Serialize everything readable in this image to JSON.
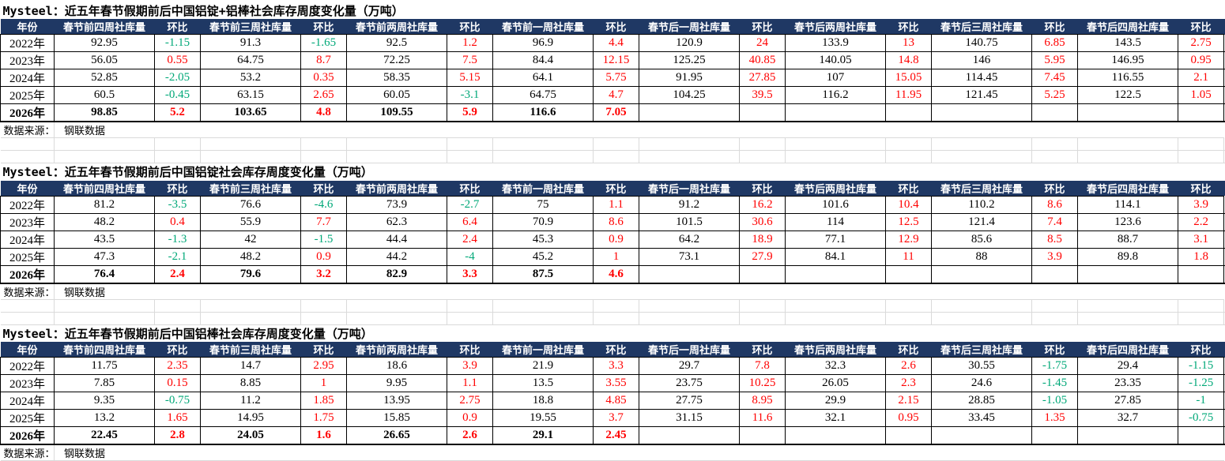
{
  "colors": {
    "header_bg": "#1F3864",
    "header_text": "#FFFFFF",
    "positive": "#FF0000",
    "negative": "#00A878",
    "grid_black": "#000000",
    "grid_light": "#DADADA"
  },
  "sheet": {
    "source_label": "数据来源：",
    "source_value": "钢联数据",
    "headers": [
      "年份",
      "春节前四周社库量",
      "环比",
      "春节前三周社库量",
      "环比",
      "春节前两周社库量",
      "环比",
      "春节前一周社库量",
      "环比",
      "春节后一周社库量",
      "环比",
      "春节后两周社库量",
      "环比",
      "春节后三周社库量",
      "环比",
      "春节后四周社库量",
      "环比"
    ],
    "tables": [
      {
        "title": "Mysteel：近五年春节假期前后中国铝锭+铝棒社会库存周度变化量（万吨）",
        "rows": [
          {
            "year": "2022年",
            "bold": false,
            "cells": [
              "92.95",
              "-1.15",
              "91.3",
              "-1.65",
              "92.5",
              "1.2",
              "96.9",
              "4.4",
              "120.9",
              "24",
              "133.9",
              "13",
              "140.75",
              "6.85",
              "143.5",
              "2.75"
            ]
          },
          {
            "year": "2023年",
            "bold": false,
            "cells": [
              "56.05",
              "0.55",
              "64.75",
              "8.7",
              "72.25",
              "7.5",
              "84.4",
              "12.15",
              "125.25",
              "40.85",
              "140.05",
              "14.8",
              "146",
              "5.95",
              "146.95",
              "0.95"
            ]
          },
          {
            "year": "2024年",
            "bold": false,
            "cells": [
              "52.85",
              "-2.05",
              "53.2",
              "0.35",
              "58.35",
              "5.15",
              "64.1",
              "5.75",
              "91.95",
              "27.85",
              "107",
              "15.05",
              "114.45",
              "7.45",
              "116.55",
              "2.1"
            ]
          },
          {
            "year": "2025年",
            "bold": false,
            "cells": [
              "60.5",
              "-0.45",
              "63.15",
              "2.65",
              "60.05",
              "-3.1",
              "64.75",
              "4.7",
              "104.25",
              "39.5",
              "116.2",
              "11.95",
              "121.45",
              "5.25",
              "122.5",
              "1.05"
            ]
          },
          {
            "year": "2026年",
            "bold": true,
            "cells": [
              "98.85",
              "5.2",
              "103.65",
              "4.8",
              "109.55",
              "5.9",
              "116.6",
              "7.05",
              "",
              "",
              "",
              "",
              "",
              "",
              "",
              ""
            ]
          }
        ]
      },
      {
        "title": "Mysteel：近五年春节假期前后中国铝锭社会库存周度变化量（万吨）",
        "rows": [
          {
            "year": "2022年",
            "bold": false,
            "cells": [
              "81.2",
              "-3.5",
              "76.6",
              "-4.6",
              "73.9",
              "-2.7",
              "75",
              "1.1",
              "91.2",
              "16.2",
              "101.6",
              "10.4",
              "110.2",
              "8.6",
              "114.1",
              "3.9"
            ]
          },
          {
            "year": "2023年",
            "bold": false,
            "cells": [
              "48.2",
              "0.4",
              "55.9",
              "7.7",
              "62.3",
              "6.4",
              "70.9",
              "8.6",
              "101.5",
              "30.6",
              "114",
              "12.5",
              "121.4",
              "7.4",
              "123.6",
              "2.2"
            ]
          },
          {
            "year": "2024年",
            "bold": false,
            "cells": [
              "43.5",
              "-1.3",
              "42",
              "-1.5",
              "44.4",
              "2.4",
              "45.3",
              "0.9",
              "64.2",
              "18.9",
              "77.1",
              "12.9",
              "85.6",
              "8.5",
              "88.7",
              "3.1"
            ]
          },
          {
            "year": "2025年",
            "bold": false,
            "cells": [
              "47.3",
              "-2.1",
              "48.2",
              "0.9",
              "44.2",
              "-4",
              "45.2",
              "1",
              "73.1",
              "27.9",
              "84.1",
              "11",
              "88",
              "3.9",
              "89.8",
              "1.8"
            ]
          },
          {
            "year": "2026年",
            "bold": true,
            "cells": [
              "76.4",
              "2.4",
              "79.6",
              "3.2",
              "82.9",
              "3.3",
              "87.5",
              "4.6",
              "",
              "",
              "",
              "",
              "",
              "",
              "",
              ""
            ]
          }
        ]
      },
      {
        "title": "Mysteel：近五年春节假期前后中国铝棒社会库存周度变化量（万吨）",
        "rows": [
          {
            "year": "2022年",
            "bold": false,
            "cells": [
              "11.75",
              "2.35",
              "14.7",
              "2.95",
              "18.6",
              "3.9",
              "21.9",
              "3.3",
              "29.7",
              "7.8",
              "32.3",
              "2.6",
              "30.55",
              "-1.75",
              "29.4",
              "-1.15"
            ]
          },
          {
            "year": "2023年",
            "bold": false,
            "cells": [
              "7.85",
              "0.15",
              "8.85",
              "1",
              "9.95",
              "1.1",
              "13.5",
              "3.55",
              "23.75",
              "10.25",
              "26.05",
              "2.3",
              "24.6",
              "-1.45",
              "23.35",
              "-1.25"
            ]
          },
          {
            "year": "2024年",
            "bold": false,
            "cells": [
              "9.35",
              "-0.75",
              "11.2",
              "1.85",
              "13.95",
              "2.75",
              "18.8",
              "4.85",
              "27.75",
              "8.95",
              "29.9",
              "2.15",
              "28.85",
              "-1.05",
              "27.85",
              "-1"
            ]
          },
          {
            "year": "2025年",
            "bold": false,
            "cells": [
              "13.2",
              "1.65",
              "14.95",
              "1.75",
              "15.85",
              "0.9",
              "19.55",
              "3.7",
              "31.15",
              "11.6",
              "32.1",
              "0.95",
              "33.45",
              "1.35",
              "32.7",
              "-0.75"
            ]
          },
          {
            "year": "2026年",
            "bold": true,
            "cells": [
              "22.45",
              "2.8",
              "24.05",
              "1.6",
              "26.65",
              "2.6",
              "29.1",
              "2.45",
              "",
              "",
              "",
              "",
              "",
              "",
              "",
              ""
            ]
          }
        ]
      }
    ]
  }
}
